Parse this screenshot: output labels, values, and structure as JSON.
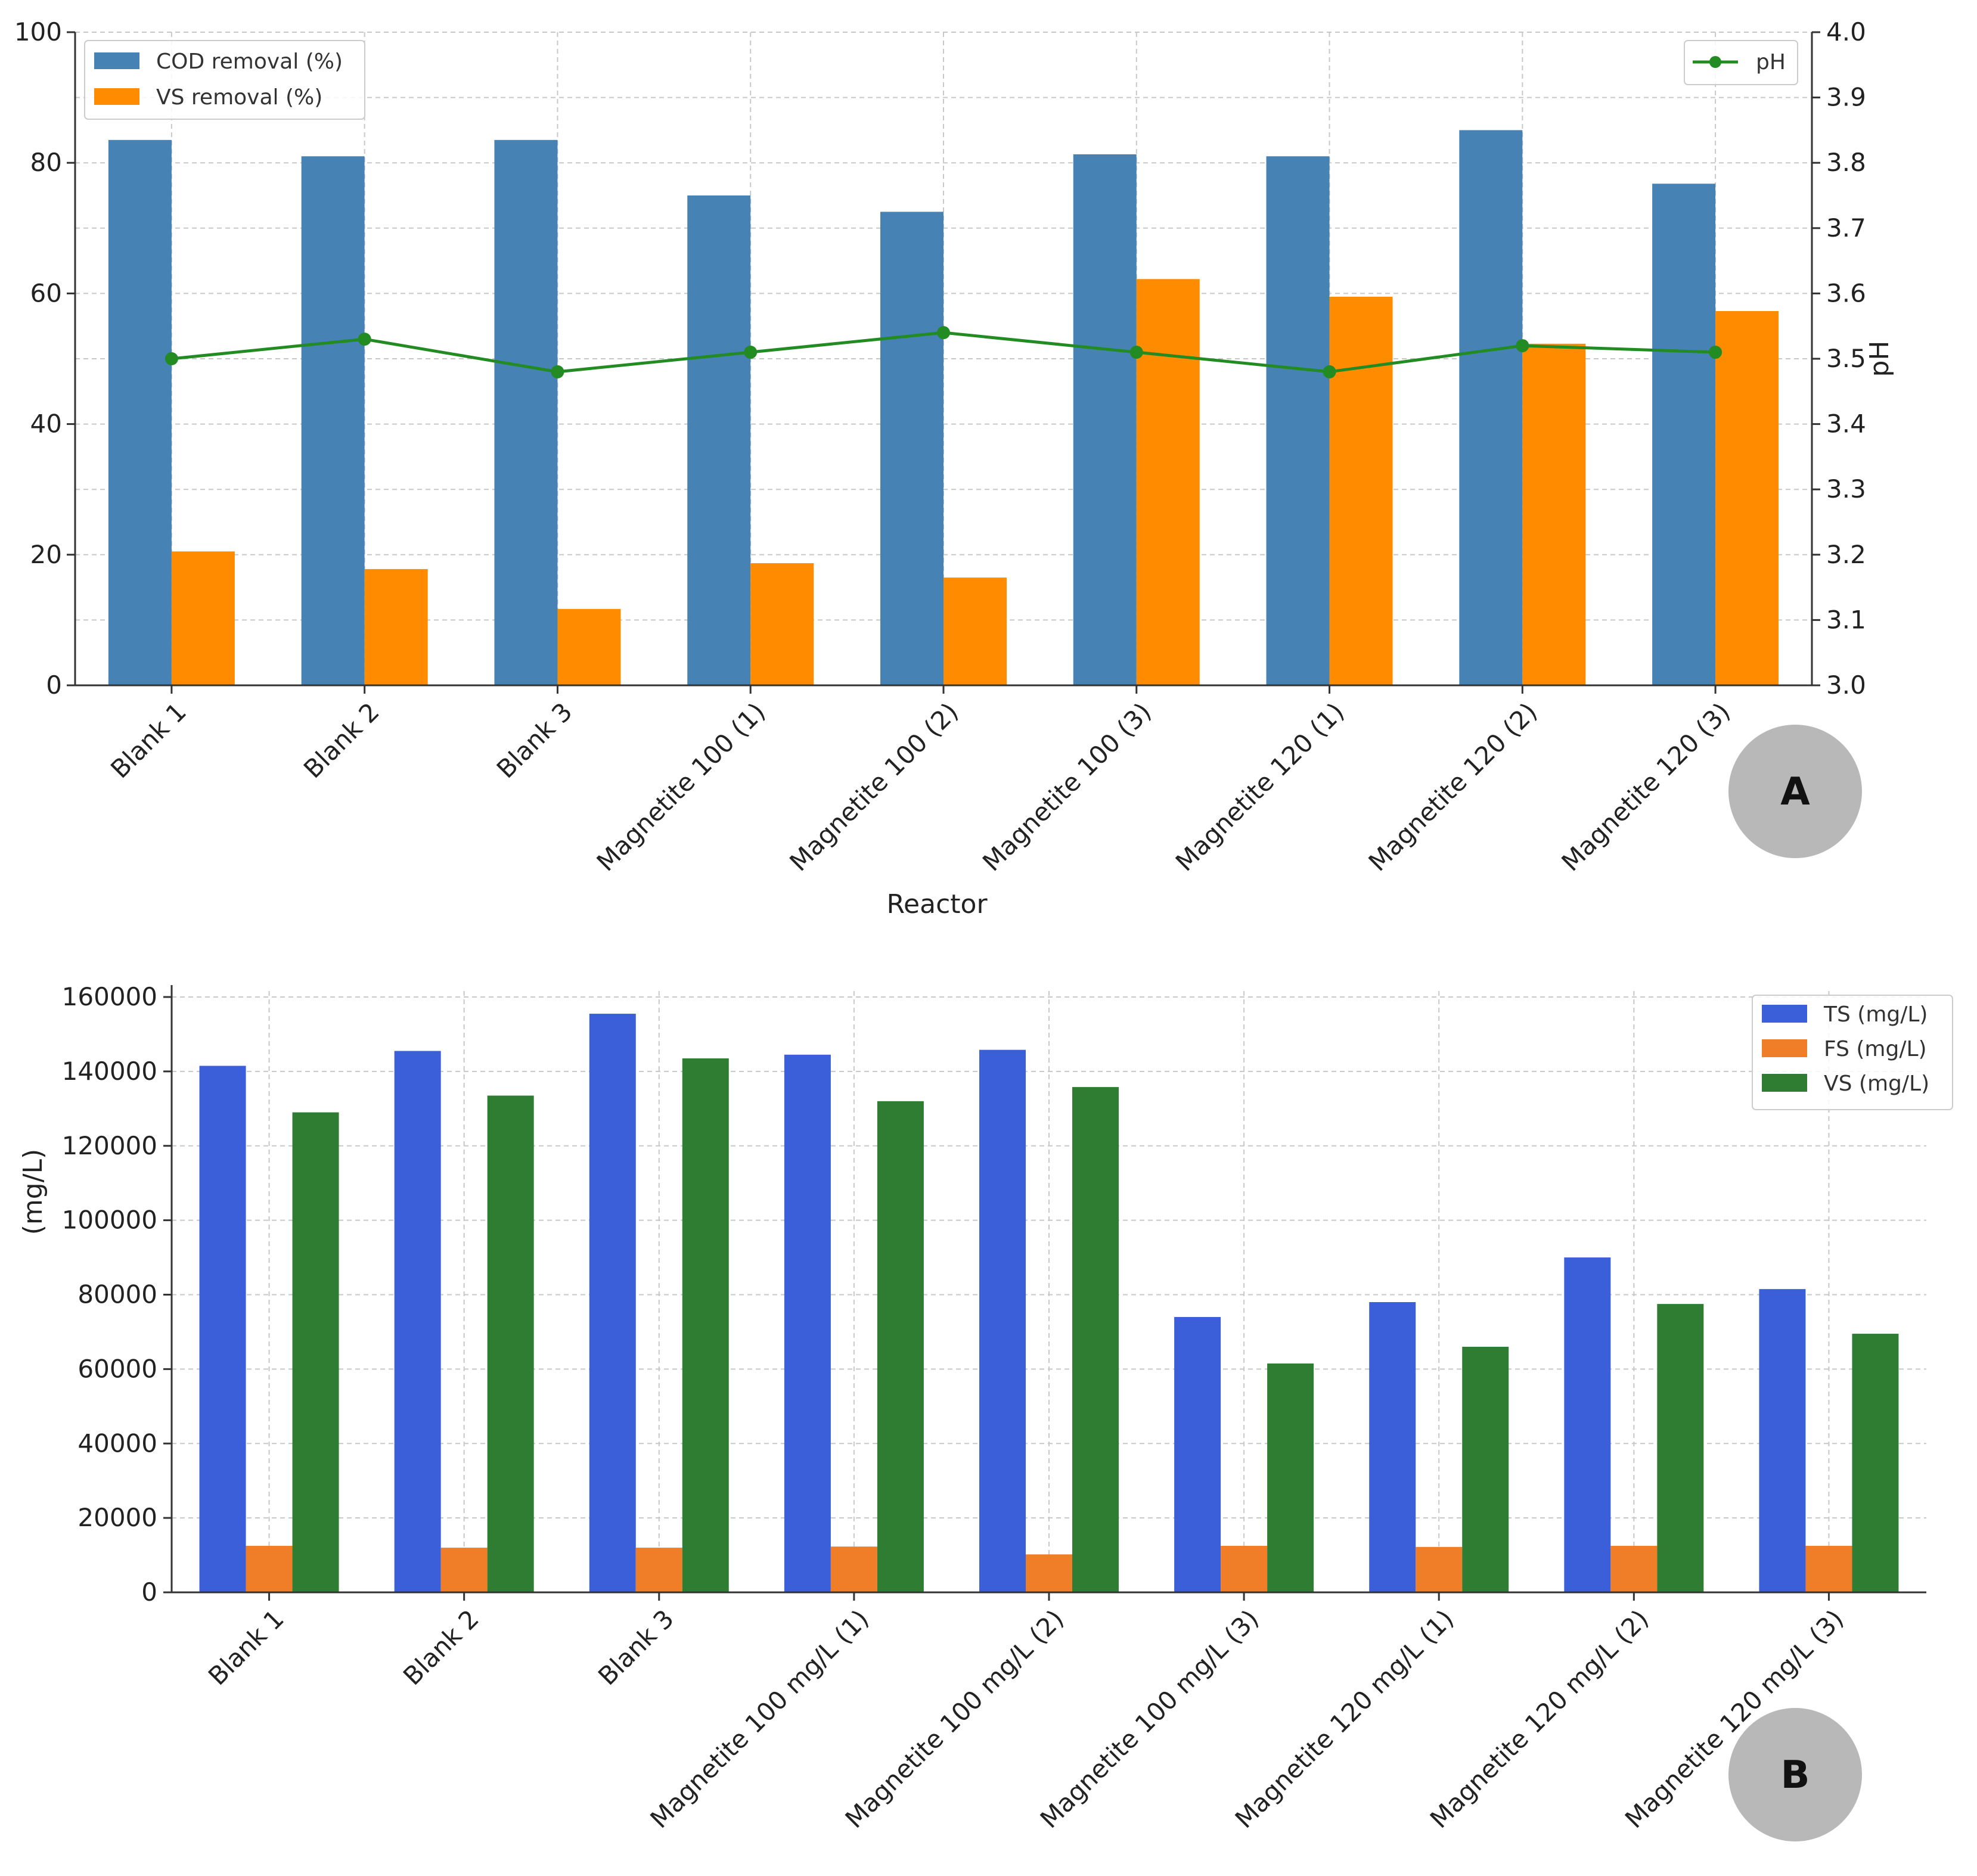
{
  "chart_data": [
    {
      "type": "bar",
      "panel_label": "A",
      "title": "",
      "xlabel": "Reactor",
      "ylabel": "",
      "ylabel_right": "pH",
      "ylim": [
        0,
        100
      ],
      "ylim_right": [
        3.0,
        4.0
      ],
      "yticks": [
        "0",
        "20",
        "40",
        "60",
        "80",
        "100"
      ],
      "yticks_right": [
        "3.0",
        "3.1",
        "3.2",
        "3.3",
        "3.4",
        "3.5",
        "3.6",
        "3.7",
        "3.8",
        "3.9",
        "4.0"
      ],
      "grid": true,
      "legend_position": "top-left",
      "legend_right_position": "top-right",
      "categories": [
        "Blank 1",
        "Blank 2",
        "Blank 3",
        "Magnetite 100 (1)",
        "Magnetite 100 (2)",
        "Magnetite 100 (3)",
        "Magnetite 120 (1)",
        "Magnetite 120 (2)",
        "Magnetite 120 (3)"
      ],
      "series": [
        {
          "name": "COD removal (%)",
          "color": "#4682b4",
          "values": [
            83.5,
            81,
            83.5,
            75,
            72.5,
            81.3,
            81,
            85,
            76.8
          ]
        },
        {
          "name": "VS removal (%)",
          "color": "#ff8c00",
          "values": [
            20.5,
            17.8,
            11.7,
            18.7,
            16.5,
            62.2,
            59.5,
            52.3,
            57.3
          ]
        }
      ],
      "line_series": {
        "name": "pH",
        "color": "#228b22",
        "axis": "right",
        "values": [
          3.5,
          3.53,
          3.48,
          3.51,
          3.54,
          3.51,
          3.48,
          3.52,
          3.51
        ]
      }
    },
    {
      "type": "bar",
      "panel_label": "B",
      "title": "",
      "xlabel": "",
      "ylabel": "(mg/L)",
      "ylim": [
        0,
        160000
      ],
      "yticks": [
        "0",
        "20000",
        "40000",
        "60000",
        "80000",
        "100000",
        "120000",
        "140000",
        "160000"
      ],
      "grid": true,
      "legend_position": "top-right",
      "categories": [
        "Blank 1",
        "Blank 2",
        "Blank 3",
        "Magnetite 100 mg/L (1)",
        "Magnetite 100 mg/L (2)",
        "Magnetite 100 mg/L (3)",
        "Magnetite 120 mg/L (1)",
        "Magnetite 120 mg/L (2)",
        "Magnetite 120 mg/L (3)"
      ],
      "series": [
        {
          "name": "TS (mg/L)",
          "color": "#3a5fd9",
          "values": [
            141500,
            145500,
            155500,
            144500,
            145800,
            74000,
            78000,
            90000,
            81500
          ]
        },
        {
          "name": "FS (mg/L)",
          "color": "#f07d27",
          "values": [
            12500,
            12000,
            12000,
            12300,
            10200,
            12500,
            12200,
            12500,
            12500
          ]
        },
        {
          "name": "VS (mg/L)",
          "color": "#2e7d32",
          "values": [
            129000,
            133500,
            143500,
            132000,
            135800,
            61500,
            66000,
            77500,
            69500
          ]
        }
      ]
    }
  ]
}
